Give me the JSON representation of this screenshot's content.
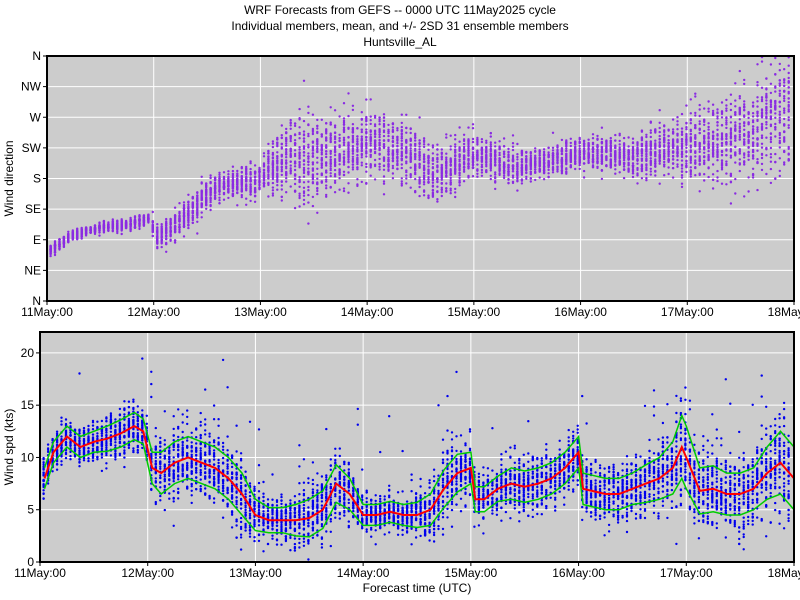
{
  "titles": {
    "line1": "WRF Forecasts from GEFS --  0000 UTC 11May2025  cycle",
    "line2": "Individual members, mean, and +/- 2SD    31 ensemble members",
    "line3": "Huntsville_AL"
  },
  "colors": {
    "panel_bg": "#cccccc",
    "grid": "#ffffff",
    "direction_points": "#8a2be2",
    "speed_points": "#0000ee",
    "mean_line": "#ff0000",
    "sd_lines": "#00cc00"
  },
  "chart_data": [
    {
      "type": "scatter",
      "ylabel": "Wind direction",
      "xlabel": "",
      "ensemble_members": 31,
      "x_unit": "hours since 11May:00",
      "xlim": [
        0,
        168
      ],
      "xticks": [
        {
          "value": 0,
          "label": "11May:00"
        },
        {
          "value": 24,
          "label": "12May:00"
        },
        {
          "value": 48,
          "label": "13May:00"
        },
        {
          "value": 72,
          "label": "14May:00"
        },
        {
          "value": 96,
          "label": "15May:00"
        },
        {
          "value": 120,
          "label": "16May:00"
        },
        {
          "value": 144,
          "label": "17May:00"
        },
        {
          "value": 168,
          "label": "18May:00"
        }
      ],
      "ylim": [
        0,
        360
      ],
      "yticks": [
        {
          "value": 0,
          "label": "N"
        },
        {
          "value": 45,
          "label": "NE"
        },
        {
          "value": 90,
          "label": "E"
        },
        {
          "value": 135,
          "label": "SE"
        },
        {
          "value": 180,
          "label": "S"
        },
        {
          "value": 225,
          "label": "SW"
        },
        {
          "value": 270,
          "label": "W"
        },
        {
          "value": 315,
          "label": "NW"
        },
        {
          "value": 360,
          "label": "N"
        }
      ],
      "grid": true,
      "central_direction": {
        "x": [
          1,
          3,
          6,
          9,
          12,
          15,
          18,
          21,
          23,
          25,
          27,
          30,
          33,
          36,
          39,
          42,
          45,
          48,
          51,
          54,
          57,
          60,
          63,
          66,
          69,
          72,
          75,
          78,
          81,
          84,
          87,
          90,
          93,
          96,
          99,
          102,
          105,
          108,
          111,
          114,
          117,
          120,
          123,
          126,
          129,
          132,
          135,
          138,
          141,
          144,
          147,
          150,
          153,
          156,
          159,
          162,
          165,
          168
        ],
        "y": [
          75,
          85,
          96,
          103,
          108,
          110,
          112,
          117,
          122,
          90,
          100,
          120,
          138,
          155,
          168,
          173,
          176,
          178,
          195,
          210,
          212,
          205,
          212,
          220,
          225,
          232,
          228,
          220,
          210,
          200,
          185,
          192,
          205,
          215,
          212,
          205,
          195,
          198,
          203,
          208,
          212,
          215,
          218,
          215,
          212,
          212,
          218,
          222,
          222,
          228,
          230,
          232,
          235,
          242,
          250,
          260,
          268,
          272
        ]
      },
      "spread_direction": {
        "x": [
          1,
          12,
          23,
          25,
          36,
          48,
          51,
          57,
          63,
          72,
          84,
          96,
          108,
          120,
          132,
          144,
          156,
          168
        ],
        "y": [
          8,
          6,
          8,
          18,
          20,
          22,
          40,
          60,
          50,
          40,
          40,
          30,
          20,
          20,
          25,
          40,
          60,
          80
        ]
      }
    },
    {
      "type": "scatter",
      "ylabel": "Wind spd (kts)",
      "xlabel": "Forecast time (UTC)",
      "ensemble_members": 31,
      "x_unit": "hours since 11May:00",
      "xlim": [
        0,
        168
      ],
      "xticks": [
        {
          "value": 0,
          "label": "11May:00"
        },
        {
          "value": 24,
          "label": "12May:00"
        },
        {
          "value": 48,
          "label": "13May:00"
        },
        {
          "value": 72,
          "label": "14May:00"
        },
        {
          "value": 96,
          "label": "15May:00"
        },
        {
          "value": 120,
          "label": "16May:00"
        },
        {
          "value": 144,
          "label": "17May:00"
        },
        {
          "value": 168,
          "label": "18May:00"
        }
      ],
      "ylim": [
        0,
        22
      ],
      "yticks": [
        {
          "value": 0,
          "label": "0"
        },
        {
          "value": 5,
          "label": "5"
        },
        {
          "value": 10,
          "label": "10"
        },
        {
          "value": 15,
          "label": "15"
        },
        {
          "value": 20,
          "label": "20"
        }
      ],
      "grid": true,
      "mean": {
        "x": [
          1,
          3,
          6,
          9,
          12,
          15,
          18,
          21,
          23,
          25,
          27,
          30,
          33,
          36,
          39,
          42,
          45,
          48,
          51,
          54,
          57,
          60,
          63,
          66,
          69,
          72,
          75,
          78,
          81,
          84,
          87,
          90,
          93,
          96,
          97,
          99,
          102,
          105,
          108,
          111,
          114,
          117,
          120,
          121,
          123,
          126,
          129,
          132,
          135,
          138,
          141,
          143,
          144,
          147,
          150,
          153,
          156,
          159,
          162,
          165,
          168
        ],
        "y": [
          8,
          10.5,
          12,
          11,
          11.5,
          11.8,
          12.3,
          13,
          12.5,
          9,
          8.5,
          9.5,
          10,
          9.5,
          9,
          8,
          6.5,
          4.5,
          4,
          4,
          4,
          4.2,
          5,
          7.5,
          6.5,
          4.5,
          4.5,
          4.8,
          4.5,
          4.5,
          5,
          7,
          8.5,
          9,
          6,
          6,
          7,
          7.5,
          7.2,
          7.5,
          8,
          9,
          10.5,
          7,
          6.8,
          6.5,
          6.5,
          7,
          7.5,
          8,
          9,
          11,
          10,
          6.8,
          7,
          6.5,
          6.5,
          7,
          8.5,
          9.5,
          8
        ]
      },
      "sd": {
        "x": [
          1,
          3,
          6,
          9,
          12,
          15,
          18,
          21,
          23,
          25,
          27,
          30,
          33,
          36,
          39,
          42,
          45,
          48,
          51,
          54,
          57,
          60,
          63,
          66,
          69,
          72,
          75,
          78,
          81,
          84,
          87,
          90,
          93,
          96,
          97,
          99,
          102,
          105,
          108,
          111,
          114,
          117,
          120,
          121,
          123,
          126,
          129,
          132,
          135,
          138,
          141,
          143,
          144,
          147,
          150,
          153,
          156,
          159,
          162,
          165,
          168
        ],
        "y": [
          1,
          1,
          1,
          1,
          1,
          1.2,
          1.3,
          1.3,
          1.2,
          1.5,
          2,
          2,
          2,
          2,
          2,
          2,
          2,
          1.5,
          1.2,
          1.2,
          1.5,
          1.8,
          1.8,
          1.8,
          1.5,
          1,
          1,
          1,
          1,
          1.2,
          1.5,
          1.8,
          1.8,
          1.5,
          1.2,
          1.2,
          1.2,
          1.5,
          1.5,
          1.5,
          1.5,
          1.5,
          1.5,
          1.5,
          1.5,
          1.5,
          1.5,
          1.5,
          1.8,
          2,
          2.5,
          3,
          3,
          2.2,
          2.2,
          2,
          2,
          2,
          2.5,
          3,
          3
        ]
      }
    }
  ]
}
